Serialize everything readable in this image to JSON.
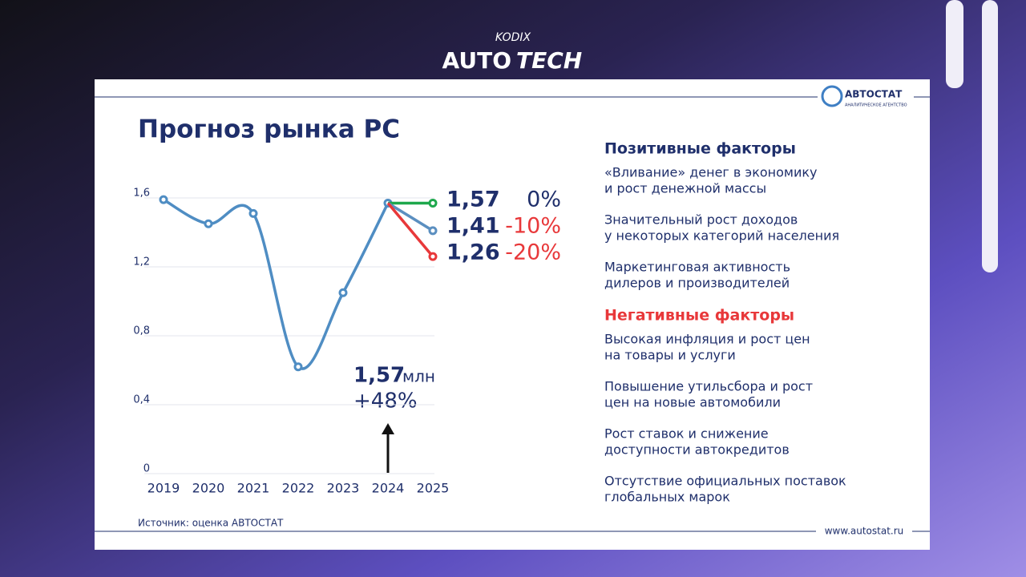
{
  "header": {
    "brand_small": "KODIX",
    "brand_auto": "AUTO",
    "brand_tech": "TECH"
  },
  "slide": {
    "logo": "АВТОСТАТ",
    "logo_sub": "АНАЛИТИЧЕСКОЕ АГЕНТСТВО",
    "source": "Источник: оценка АВТОСТАТ",
    "url": "www.autostat.ru",
    "positive_title": "Позитивные факторы",
    "positive": [
      [
        "«Вливание» денег в экономику",
        "и рост денежной массы"
      ],
      [
        "Значительный рост доходов",
        "у некоторых категорий населения"
      ],
      [
        "Маркетинговая активность",
        "дилеров и производителей"
      ]
    ],
    "negative_title": "Негативные факторы",
    "negative": [
      [
        "Высокая инфляция и рост цен",
        "на товары и услуги"
      ],
      [
        "Повышение утильсбора и рост",
        "цен на новые автомобили"
      ],
      [
        "Рост ставок и снижение",
        "доступности автокредитов"
      ],
      [
        "Отсутствие официальных поставок",
        "глобальных марок"
      ]
    ]
  },
  "chart_data": {
    "type": "line",
    "title": "Прогноз рынка РС",
    "categories": [
      "2019",
      "2020",
      "2021",
      "2022",
      "2023",
      "2024",
      "2025"
    ],
    "series": [
      {
        "color": "#4f8dc3",
        "values": [
          1.59,
          1.45,
          1.51,
          0.62,
          1.05,
          1.57,
          null
        ]
      },
      {
        "name": "0%",
        "color": "#1ea84c",
        "values": [
          null,
          null,
          null,
          null,
          null,
          1.57,
          1.57
        ],
        "value_labels": [
          null,
          null,
          null,
          null,
          null,
          null,
          "1,57"
        ]
      },
      {
        "name": "-10%",
        "color": "#5b8fc0",
        "values": [
          null,
          null,
          null,
          null,
          null,
          1.57,
          1.41
        ],
        "value_labels": [
          null,
          null,
          null,
          null,
          null,
          null,
          "1,41"
        ]
      },
      {
        "name": "-20%",
        "color": "#e8383a",
        "values": [
          null,
          null,
          null,
          null,
          null,
          1.57,
          1.26
        ],
        "value_labels": [
          null,
          null,
          null,
          null,
          null,
          null,
          "1,26"
        ]
      }
    ],
    "ylim": [
      0,
      1.6
    ],
    "yticks": [
      0,
      {
        "value": 0.4,
        "label": "0,4"
      },
      {
        "value": 0.8,
        "label": "0,8"
      },
      {
        "value": 1.2,
        "label": "1,2"
      },
      {
        "value": 1.6,
        "label": "1,6"
      }
    ],
    "grid": true,
    "annotations": [
      "1,57",
      "млн",
      "+48%"
    ]
  }
}
